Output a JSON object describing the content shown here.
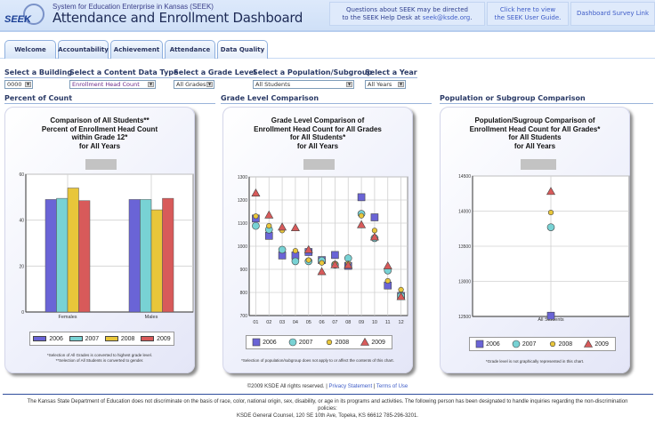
{
  "header": {
    "logo_text": "SEEK",
    "system_name": "System for Education Enterprise in Kansas (SEEK)",
    "title": "Attendance and Enrollment Dashboard",
    "help_line1": "Questions about SEEK may be directed",
    "help_line2_prefix": "to the SEEK Help Desk at ",
    "help_email": "seek@ksde.org",
    "help_line2_suffix": ".",
    "guide_line1": "Click here to view",
    "guide_line2": "the SEEK User Guide.",
    "survey_link": "Dashboard Survey Link"
  },
  "tabs": [
    {
      "label": "Welcome"
    },
    {
      "label": "Accountability"
    },
    {
      "label": "Achievement"
    },
    {
      "label": "Attendance"
    },
    {
      "label": "Data Quality"
    }
  ],
  "filters": {
    "building": {
      "label": "Select a Building",
      "value": "0000"
    },
    "content_type": {
      "label": "Select a Content Data Type",
      "value": "Enrollment Head Count"
    },
    "grade": {
      "label": "Select a Grade Level",
      "value": "All Grades"
    },
    "population": {
      "label": "Select a Population/Subgroup",
      "value": "All Students"
    },
    "year": {
      "label": "Select a Year",
      "value": "All Years"
    }
  },
  "sections": {
    "percent": "Percent of Count",
    "grade": "Grade Level Comparison",
    "population": "Population or Subgroup Comparison"
  },
  "colors": {
    "2006": "#6a64d6",
    "2007": "#78d2d4",
    "2008": "#e8c63a",
    "2009": "#d85a5a"
  },
  "chart_data": [
    {
      "type": "bar",
      "title": [
        "Comparison of All Students**",
        "Percent of Enrollment Head Count",
        "within Grade 12*",
        "for All Years"
      ],
      "categories": [
        "Females",
        "Males"
      ],
      "series": [
        {
          "name": "2006",
          "values": [
            49,
            49
          ]
        },
        {
          "name": "2007",
          "values": [
            49.5,
            49
          ]
        },
        {
          "name": "2008",
          "values": [
            54,
            44.5
          ]
        },
        {
          "name": "2009",
          "values": [
            48.5,
            49.5
          ]
        }
      ],
      "ylim": [
        0,
        60
      ],
      "yticks": [
        "0",
        "20",
        "40",
        "60"
      ],
      "grid": true,
      "legend": "bottom",
      "notes": [
        "*Selection of All Grades is converted to highest grade level.",
        "**Selection of All Students is converted to gender."
      ]
    },
    {
      "type": "scatter",
      "title": [
        "Grade Level Comparison of",
        "Enrollment Head Count for All Grades",
        "for All Students*",
        "for All Years"
      ],
      "categories": [
        "01",
        "02",
        "03",
        "04",
        "05",
        "06",
        "07",
        "08",
        "09",
        "10",
        "11",
        "12"
      ],
      "series": [
        {
          "name": "2006",
          "marker": "square",
          "values": [
            1120,
            1045,
            960,
            960,
            975,
            940,
            962,
            915,
            1212,
            1125,
            830,
            785
          ]
        },
        {
          "name": "2007",
          "marker": "circle",
          "values": [
            1088,
            1072,
            985,
            935,
            935,
            938,
            920,
            948,
            1140,
            1035,
            895,
            785
          ]
        },
        {
          "name": "2008",
          "marker": "diamond",
          "values": [
            1130,
            1088,
            1068,
            980,
            940,
            928,
            925,
            925,
            1132,
            1068,
            850,
            812
          ]
        },
        {
          "name": "2009",
          "marker": "triangle",
          "values": [
            1230,
            1135,
            1083,
            1080,
            985,
            890,
            920,
            918,
            1093,
            1040,
            915,
            782
          ]
        }
      ],
      "ylim": [
        700,
        1300
      ],
      "yticks": [
        "700",
        "800",
        "900",
        "1000",
        "1100",
        "1200",
        "1300"
      ],
      "grid": true,
      "legend": "bottom",
      "notes": [
        "*Selection of population/subgroup does not apply to or affect the contents of this chart."
      ]
    },
    {
      "type": "scatter",
      "title": [
        "Population/Sugroup Comparison of",
        "Enrollment Head Count for All Grades*",
        "for All Students",
        "for All Years"
      ],
      "categories": [
        "All Students"
      ],
      "series": [
        {
          "name": "2006",
          "marker": "square",
          "values": [
            12510
          ]
        },
        {
          "name": "2007",
          "marker": "circle",
          "values": [
            13770
          ]
        },
        {
          "name": "2008",
          "marker": "diamond",
          "values": [
            13980
          ]
        },
        {
          "name": "2009",
          "marker": "triangle",
          "values": [
            14280
          ]
        }
      ],
      "ylim": [
        12500,
        14500
      ],
      "yticks": [
        "12500",
        "13000",
        "13500",
        "14000",
        "14500"
      ],
      "grid": true,
      "legend": "bottom",
      "notes": [
        "*Grade level is not graphically represented in this chart."
      ]
    }
  ],
  "footer": {
    "copyright": "©2009 KSDE All rights reserved.",
    "privacy": "Privacy Statement",
    "terms": "Terms of Use",
    "disclaimer_line1": "The Kansas State Department of Education does not discriminate on the basis of race, color, national origin, sex, disability, or age in its programs and activities. The following person has been designated to handle inquiries regarding the non-discrimination",
    "disclaimer_line2": "policies:",
    "disclaimer_line3": "KSDE General Counsel, 120 SE 10th Ave, Topeka, KS 66612 785-296-3201."
  }
}
